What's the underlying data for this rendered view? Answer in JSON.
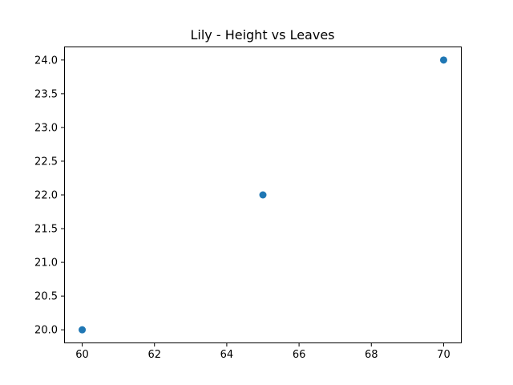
{
  "chart_data": {
    "type": "scatter",
    "title": "Lily - Height vs Leaves",
    "xlabel": "",
    "ylabel": "",
    "x": [
      60,
      65,
      70
    ],
    "y": [
      20,
      22,
      24
    ],
    "xlim": [
      59.5,
      70.5
    ],
    "ylim": [
      19.8,
      24.2
    ],
    "xticks": [
      60,
      62,
      64,
      66,
      68,
      70
    ],
    "yticks": [
      20.0,
      20.5,
      21.0,
      21.5,
      22.0,
      22.5,
      23.0,
      23.5,
      24.0
    ],
    "xtick_labels": [
      "60",
      "62",
      "64",
      "66",
      "68",
      "70"
    ],
    "ytick_labels": [
      "20.0",
      "20.5",
      "21.0",
      "21.5",
      "22.0",
      "22.5",
      "23.0",
      "23.5",
      "24.0"
    ],
    "marker_color": "#1f77b4",
    "grid": false,
    "legend": "none"
  }
}
